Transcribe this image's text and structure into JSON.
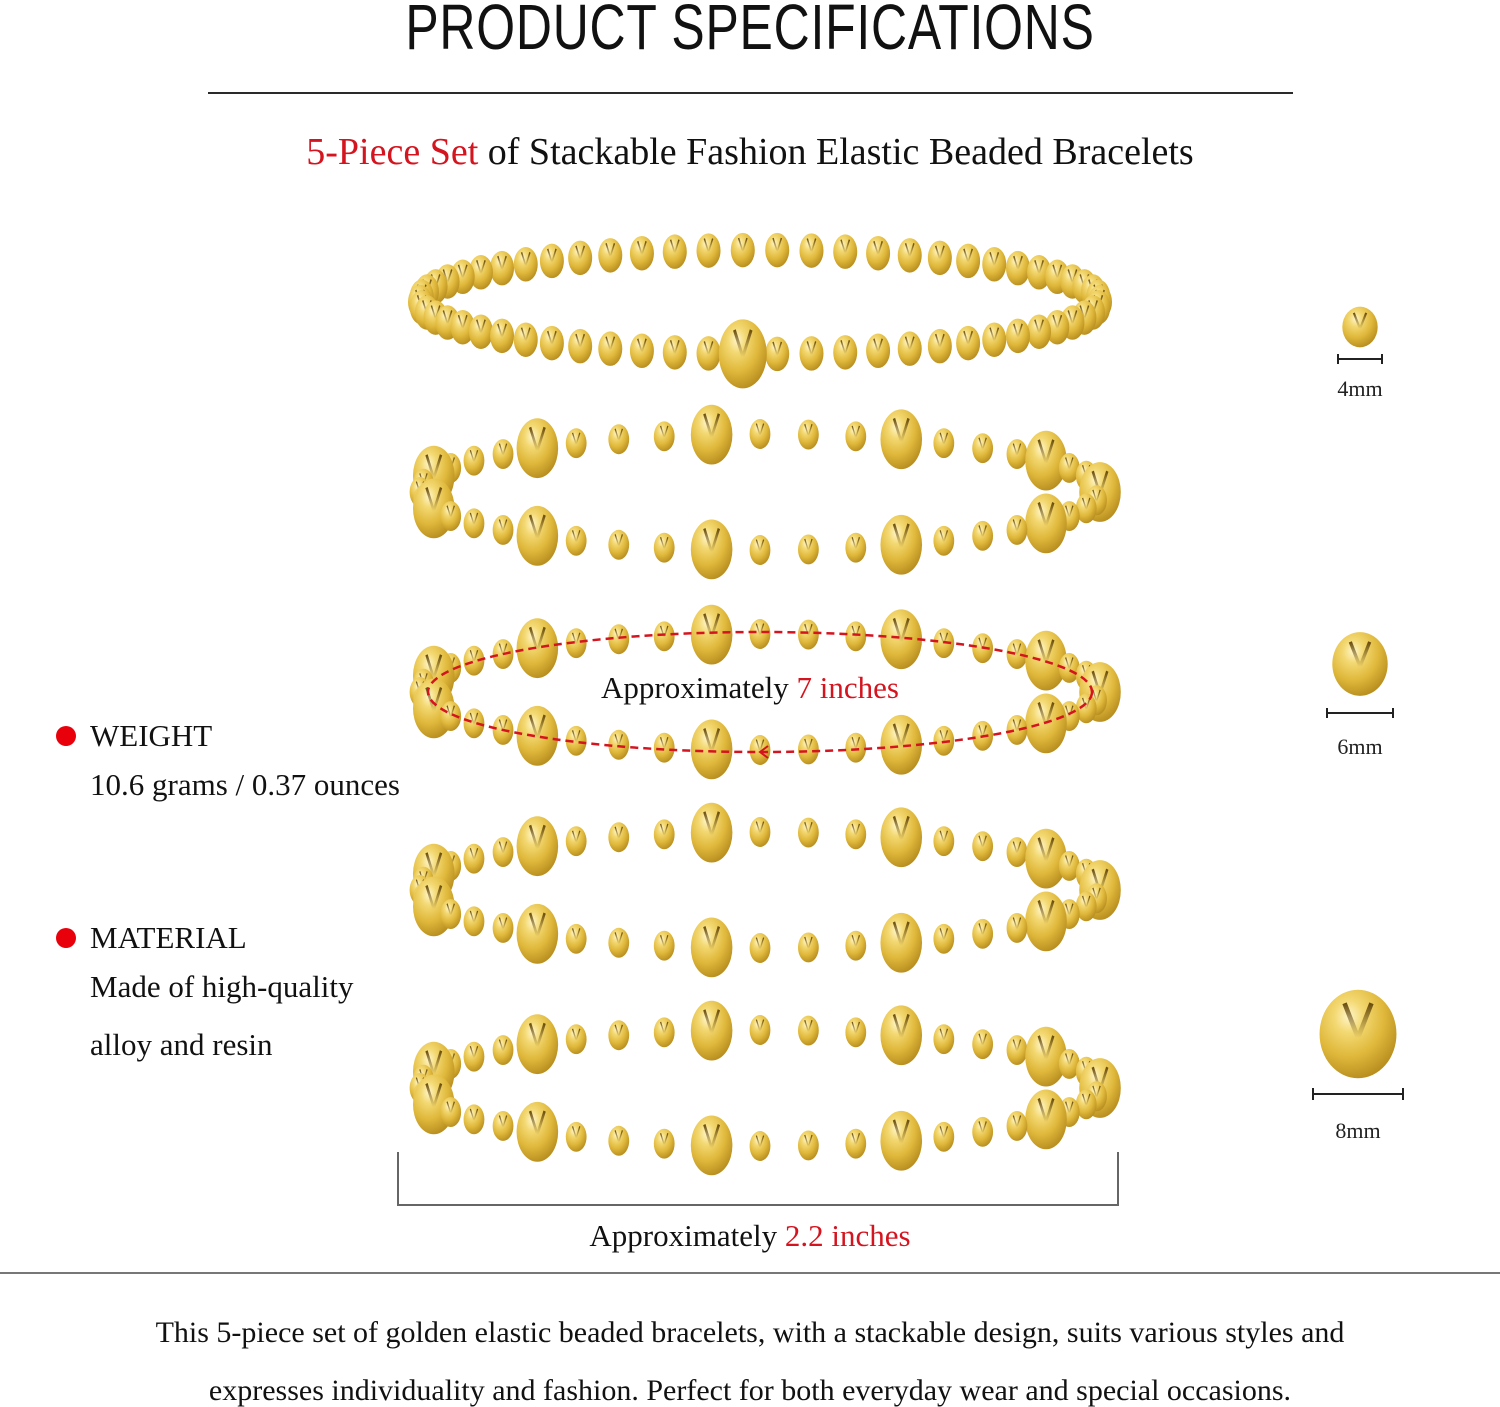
{
  "header": {
    "title": "PRODUCT SPECIFICATIONS",
    "subtitle_highlight": "5-Piece Set",
    "subtitle_rest": " of Stackable Fashion Elastic Beaded Bracelets"
  },
  "colors": {
    "accent_red": "#d4141e",
    "bullet_red": "#e8000b",
    "gold": "#e8c449",
    "text": "#111111"
  },
  "product": {
    "bracelet_count": 5,
    "bracelets": [
      {
        "index": 1,
        "style": "4mm beads with single 6mm center bead"
      },
      {
        "index": 2,
        "style": "4mm beads alternating with 6mm/8mm beads"
      },
      {
        "index": 3,
        "style": "4mm beads alternating with 6mm/8mm beads",
        "annotation": "circumference"
      },
      {
        "index": 4,
        "style": "4mm beads alternating with 6mm/8mm beads"
      },
      {
        "index": 5,
        "style": "4mm beads alternating with 6mm/8mm beads"
      }
    ]
  },
  "measurements": {
    "circumference_prefix": "Approximately ",
    "circumference_value": "7 inches",
    "width_prefix": "Approximately ",
    "width_value": "2.2 inches"
  },
  "specs": [
    {
      "label": "WEIGHT",
      "lines": [
        "10.6 grams / 0.37 ounces"
      ]
    },
    {
      "label": "MATERIAL",
      "lines": [
        "Made of high-quality",
        "alloy and resin"
      ]
    }
  ],
  "bead_sizes": [
    {
      "label": "4mm",
      "icon": "gold-bead-icon"
    },
    {
      "label": "6mm",
      "icon": "gold-bead-icon"
    },
    {
      "label": "8mm",
      "icon": "gold-bead-icon"
    }
  ],
  "description": {
    "line1": "This 5-piece set of golden elastic beaded bracelets, with a stackable design, suits various styles and",
    "line2": "expresses individuality and fashion. Perfect for both everyday wear and special occasions."
  }
}
